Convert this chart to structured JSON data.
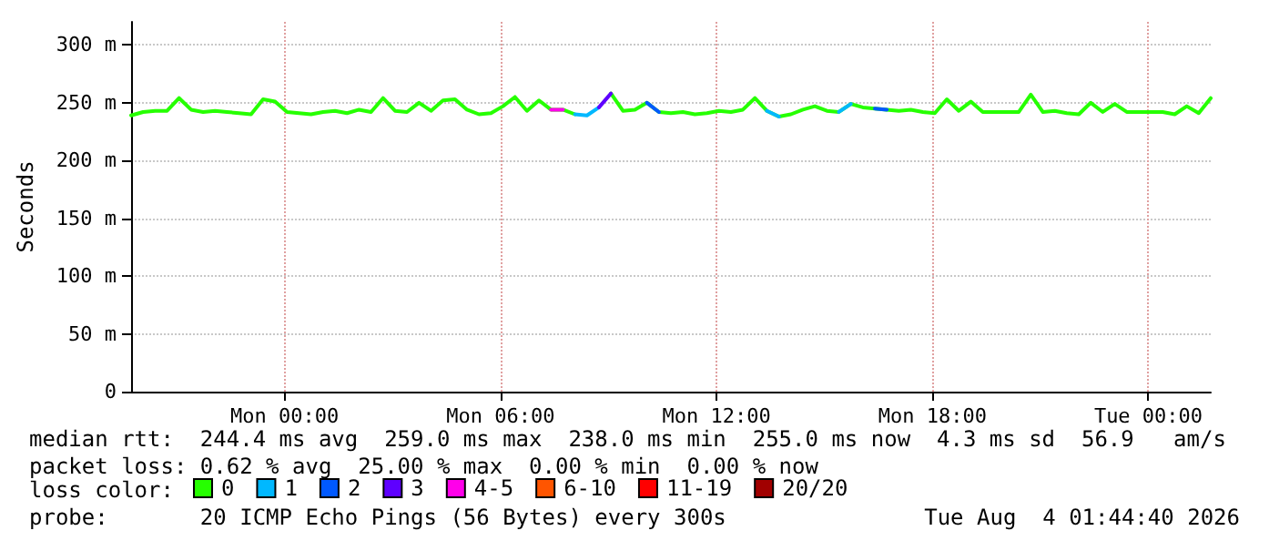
{
  "chart_data": {
    "type": "line",
    "ylabel": "Seconds",
    "legend_title": "loss color:",
    "legend": "bottom",
    "grid": true,
    "line_style": "solid",
    "xlim": [
      "--08-02T19:44",
      "--08-04T01:44"
    ],
    "xticks": [
      {
        "value": "--08-03T00:00",
        "label": "Mon 00:00"
      },
      {
        "value": "--08-03T06:00",
        "label": "Mon 06:00"
      },
      {
        "value": "--08-03T12:00",
        "label": "Mon 12:00"
      },
      {
        "value": "--08-03T18:00",
        "label": "Mon 18:00"
      },
      {
        "value": "--08-04T00:00",
        "label": "Tue 00:00"
      }
    ],
    "ylim": [
      0,
      320
    ],
    "yticks": [
      0,
      {
        "value": 50,
        "label": "50 m"
      },
      {
        "value": 100,
        "label": "100 m"
      },
      {
        "value": 150,
        "label": "150 m"
      },
      {
        "value": 200,
        "label": "200 m"
      },
      {
        "value": 250,
        "label": "250 m"
      },
      {
        "value": 300,
        "label": "300 m"
      }
    ],
    "x": [
      "--08-02T19:44",
      "--08-02T20:04",
      "--08-02T20:24",
      "--08-02T20:44",
      "--08-02T21:04",
      "--08-02T21:24",
      "--08-02T21:44",
      "--08-02T22:04",
      "--08-02T22:24",
      "--08-02T22:44",
      "--08-02T23:04",
      "--08-02T23:24",
      "--08-02T23:44",
      "--08-03T00:04",
      "--08-03T00:24",
      "--08-03T00:44",
      "--08-03T01:04",
      "--08-03T01:24",
      "--08-03T01:44",
      "--08-03T02:04",
      "--08-03T02:24",
      "--08-03T02:44",
      "--08-03T03:04",
      "--08-03T03:24",
      "--08-03T03:44",
      "--08-03T04:04",
      "--08-03T04:24",
      "--08-03T04:44",
      "--08-03T05:04",
      "--08-03T05:24",
      "--08-03T05:44",
      "--08-03T06:04",
      "--08-03T06:24",
      "--08-03T06:44",
      "--08-03T07:04",
      "--08-03T07:24",
      "--08-03T07:44",
      "--08-03T08:04",
      "--08-03T08:24",
      "--08-03T08:44",
      "--08-03T09:04",
      "--08-03T09:24",
      "--08-03T09:44",
      "--08-03T10:04",
      "--08-03T10:24",
      "--08-03T10:44",
      "--08-03T11:04",
      "--08-03T11:24",
      "--08-03T11:44",
      "--08-03T12:04",
      "--08-03T12:24",
      "--08-03T12:44",
      "--08-03T13:04",
      "--08-03T13:24",
      "--08-03T13:44",
      "--08-03T14:04",
      "--08-03T14:24",
      "--08-03T14:44",
      "--08-03T15:04",
      "--08-03T15:24",
      "--08-03T15:44",
      "--08-03T16:04",
      "--08-03T16:24",
      "--08-03T16:44",
      "--08-03T17:04",
      "--08-03T17:24",
      "--08-03T17:44",
      "--08-03T18:04",
      "--08-03T18:24",
      "--08-03T18:44",
      "--08-03T19:04",
      "--08-03T19:24",
      "--08-03T19:44",
      "--08-03T20:04",
      "--08-03T20:24",
      "--08-03T20:44",
      "--08-03T21:04",
      "--08-03T21:24",
      "--08-03T21:44",
      "--08-03T22:04",
      "--08-03T22:24",
      "--08-03T22:44",
      "--08-03T23:04",
      "--08-03T23:24",
      "--08-03T23:44",
      "--08-04T00:04",
      "--08-04T00:24",
      "--08-04T00:44",
      "--08-04T01:04",
      "--08-04T01:24",
      "--08-04T01:44"
    ],
    "series": [
      {
        "name": "0",
        "color": "#26ff00",
        "values": [
          239,
          242,
          243,
          243,
          254,
          244,
          242,
          243,
          242,
          241,
          240,
          253,
          251,
          242,
          241,
          240,
          242,
          243,
          241,
          244,
          242,
          254,
          243,
          242,
          250,
          243,
          252,
          253,
          244,
          240,
          241,
          247,
          255,
          243,
          252,
          244,
          244,
          240,
          null,
          null,
          258,
          243,
          244,
          250,
          242,
          241,
          242,
          240,
          241,
          243,
          242,
          244,
          254,
          243,
          238,
          240,
          244,
          247,
          243,
          242,
          249,
          246,
          245,
          244,
          243,
          244,
          242,
          241,
          253,
          243,
          251,
          242,
          242,
          242,
          242,
          257,
          242,
          243,
          241,
          240,
          250,
          242,
          249,
          242,
          242,
          242,
          242,
          240,
          247,
          241,
          254
        ]
      },
      {
        "name": "1",
        "color": "#00b8ff",
        "x": [
          "--08-03T08:04",
          "--08-03T08:24",
          "--08-03T08:44",
          "--08-03T09:00",
          "--08-03T13:24",
          "--08-03T13:44",
          "--08-03T14:00",
          "--08-03T15:24",
          "--08-03T15:44"
        ],
        "values": [
          240,
          239,
          246,
          null,
          243,
          238,
          null,
          242,
          249
        ]
      },
      {
        "name": "2",
        "color": "#0059ff",
        "x": [
          "--08-03T10:04",
          "--08-03T10:24",
          "--08-03T11:00",
          "--08-03T16:24",
          "--08-03T16:44"
        ],
        "values": [
          250,
          242,
          null,
          245,
          244
        ]
      },
      {
        "name": "3",
        "color": "#5e00ff",
        "x": [
          "--08-03T08:44",
          "--08-03T09:04"
        ],
        "values": [
          246,
          258
        ]
      },
      {
        "name": "4-5",
        "color": "#ff00ea",
        "x": [
          "--08-03T07:24",
          "--08-03T07:44"
        ],
        "values": [
          244,
          244
        ]
      },
      {
        "name": "6-10",
        "color": "#ff5500",
        "values": [
          null,
          null,
          null,
          null,
          null,
          null,
          null,
          null,
          null,
          null,
          null,
          null,
          null,
          null,
          null,
          null,
          null,
          null,
          null,
          null,
          null,
          null,
          null,
          null,
          null,
          null,
          null,
          null,
          null,
          null,
          null,
          null,
          null,
          null,
          null,
          null,
          null,
          null,
          null,
          null,
          null,
          null,
          null,
          null,
          null,
          null,
          null,
          null,
          null,
          null,
          null,
          null,
          null,
          null,
          null,
          null,
          null,
          null,
          null,
          null,
          null,
          null,
          null,
          null,
          null,
          null,
          null,
          null,
          null,
          null,
          null,
          null,
          null,
          null,
          null,
          null,
          null,
          null,
          null,
          null,
          null,
          null,
          null,
          null,
          null,
          null,
          null,
          null,
          null,
          null,
          null
        ]
      },
      {
        "name": "11-19",
        "color": "#ff0000",
        "values": [
          null,
          null,
          null,
          null,
          null,
          null,
          null,
          null,
          null,
          null,
          null,
          null,
          null,
          null,
          null,
          null,
          null,
          null,
          null,
          null,
          null,
          null,
          null,
          null,
          null,
          null,
          null,
          null,
          null,
          null,
          null,
          null,
          null,
          null,
          null,
          null,
          null,
          null,
          null,
          null,
          null,
          null,
          null,
          null,
          null,
          null,
          null,
          null,
          null,
          null,
          null,
          null,
          null,
          null,
          null,
          null,
          null,
          null,
          null,
          null,
          null,
          null,
          null,
          null,
          null,
          null,
          null,
          null,
          null,
          null,
          null,
          null,
          null,
          null,
          null,
          null,
          null,
          null,
          null,
          null,
          null,
          null,
          null,
          null,
          null,
          null,
          null,
          null,
          null,
          null,
          null
        ]
      },
      {
        "name": "20/20",
        "color": "#a10000",
        "values": [
          null,
          null,
          null,
          null,
          null,
          null,
          null,
          null,
          null,
          null,
          null,
          null,
          null,
          null,
          null,
          null,
          null,
          null,
          null,
          null,
          null,
          null,
          null,
          null,
          null,
          null,
          null,
          null,
          null,
          null,
          null,
          null,
          null,
          null,
          null,
          null,
          null,
          null,
          null,
          null,
          null,
          null,
          null,
          null,
          null,
          null,
          null,
          null,
          null,
          null,
          null,
          null,
          null,
          null,
          null,
          null,
          null,
          null,
          null,
          null,
          null,
          null,
          null,
          null,
          null,
          null,
          null,
          null,
          null,
          null,
          null,
          null,
          null,
          null,
          null,
          null,
          null,
          null,
          null,
          null,
          null,
          null,
          null,
          null,
          null,
          null,
          null,
          null,
          null,
          null,
          null
        ]
      }
    ],
    "annotations": [
      "median rtt:  244.4 ms avg  259.0 ms max  238.0 ms min  255.0 ms now  4.3 ms sd  56.9   am/s",
      "packet loss: 0.62 % avg  25.00 % max  0.00 % min  0.00 % now",
      "probe:       20 ICMP Echo Pings (56 Bytes) every 300s",
      "Tue Aug  4 01:44:40 2026"
    ]
  }
}
